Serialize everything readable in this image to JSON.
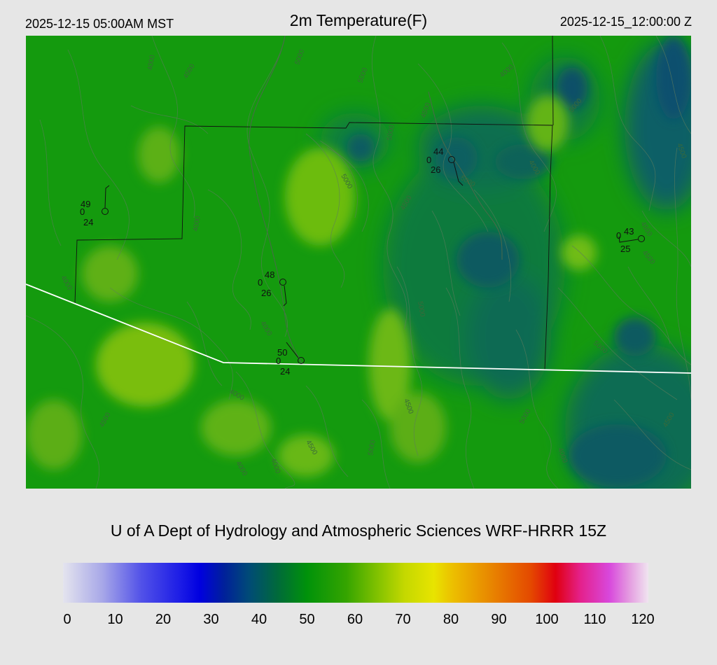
{
  "header": {
    "local_time": "2025-12-15 05:00AM MST",
    "title": "2m Temperature(F)",
    "utc_time": "2025-12-15_12:00:00 Z"
  },
  "credit": "U of A Dept of Hydrology and Atmospheric Sciences WRF-HRRR 15Z",
  "colorbar": {
    "min": 0,
    "max": 120,
    "ticks": [
      "0",
      "10",
      "20",
      "30",
      "40",
      "50",
      "60",
      "70",
      "80",
      "90",
      "100",
      "110",
      "120"
    ],
    "stops": [
      {
        "value": 0,
        "color": "#e4e4ee"
      },
      {
        "value": 8,
        "color": "#a8a8e8"
      },
      {
        "value": 16,
        "color": "#5252e8"
      },
      {
        "value": 24,
        "color": "#1c1ce6"
      },
      {
        "value": 28,
        "color": "#0000e0"
      },
      {
        "value": 33,
        "color": "#00209a"
      },
      {
        "value": 38,
        "color": "#004a78"
      },
      {
        "value": 44,
        "color": "#006a3a"
      },
      {
        "value": 50,
        "color": "#00920a"
      },
      {
        "value": 58,
        "color": "#34a400"
      },
      {
        "value": 65,
        "color": "#88c400"
      },
      {
        "value": 70,
        "color": "#c4d800"
      },
      {
        "value": 76,
        "color": "#e8e400"
      },
      {
        "value": 80,
        "color": "#ecbe00"
      },
      {
        "value": 88,
        "color": "#e88400"
      },
      {
        "value": 96,
        "color": "#e44800"
      },
      {
        "value": 101,
        "color": "#e00010"
      },
      {
        "value": 106,
        "color": "#e4208a"
      },
      {
        "value": 112,
        "color": "#d848dc"
      },
      {
        "value": 116,
        "color": "#e49ae0"
      },
      {
        "value": 120,
        "color": "#f0e4f0"
      }
    ]
  },
  "stations": [
    {
      "temp": "49",
      "wind": "0",
      "dew": "24"
    },
    {
      "temp": "44",
      "wind": "0",
      "dew": "26"
    },
    {
      "temp": "48",
      "wind": "0",
      "dew": "26"
    },
    {
      "temp": "50",
      "wind": "0",
      "dew": "24"
    },
    {
      "temp": "43",
      "wind": "0",
      "dew": "25"
    }
  ],
  "contour_labels": [
    "5000",
    "4500",
    "4000",
    "5000",
    "4500",
    "5000",
    "4000",
    "5000",
    "4500",
    "4000",
    "4500",
    "5000",
    "4000",
    "5000",
    "4000",
    "4500",
    "5000",
    "4000",
    "4000",
    "4500",
    "5000",
    "4500",
    "4000",
    "5000",
    "4500",
    "4000",
    "4500",
    "5000",
    "4000",
    "4500"
  ]
}
